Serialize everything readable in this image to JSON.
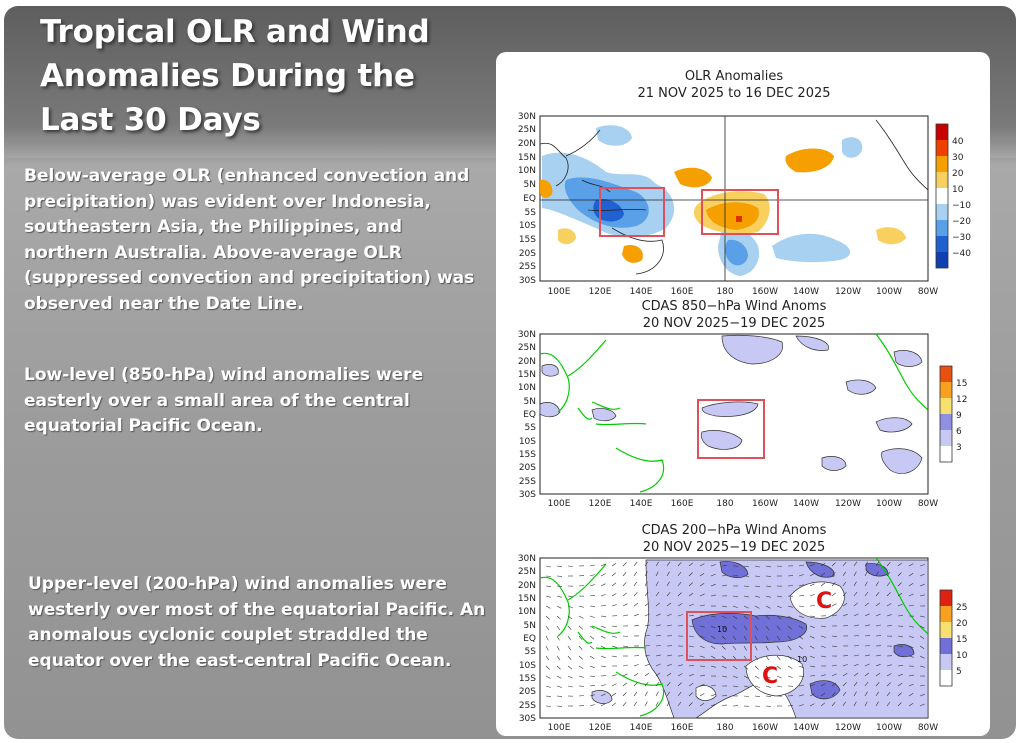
{
  "slide": {
    "title": "Tropical OLR and Wind Anomalies During the Last 30 Days",
    "paragraphs": [
      "Below-average OLR (enhanced convection and precipitation) was evident over Indonesia, southeastern Asia, the Philippines, and northern Australia.  Above-average OLR (suppressed convection and precipitation) was observed near the Date Line.",
      "Low-level (850-hPa) wind anomalies were easterly over a small area of the central equatorial Pacific Ocean.",
      "Upper-level (200-hPa) wind anomalies were westerly over most of the equatorial Pacific. An anomalous cyclonic couplet straddled the equator over the east-central Pacific Ocean."
    ]
  },
  "colors": {
    "background": "#9a9a9a",
    "panel": "#ffffff",
    "highlight_box": "#e0505a",
    "coastline": "#00cc00",
    "olr_negative": "#3f8ee0",
    "olr_positive": "#f0a826",
    "wind_shading": "#b8b8f0"
  },
  "figures": {
    "olr": {
      "title_line1": "OLR Anomalies",
      "title_line2": "21 NOV 2025 to 16 DEC 2025",
      "lat_labels": [
        "30N",
        "25N",
        "20N",
        "15N",
        "10N",
        "5N",
        "EQ",
        "5S",
        "10S",
        "15S",
        "20S",
        "25S",
        "30S"
      ],
      "lon_labels": [
        "100E",
        "120E",
        "140E",
        "160E",
        "180",
        "160W",
        "140W",
        "120W",
        "100W",
        "80W"
      ],
      "colorbar_labels": [
        "40",
        "30",
        "20",
        "10",
        "−10",
        "−20",
        "−30",
        "−40"
      ],
      "colorbar_colors": [
        "#c80000",
        "#f04000",
        "#f5a000",
        "#f8d060",
        "#ffffff",
        "#a8d0f0",
        "#5aa0e8",
        "#2060d0",
        "#1040b0"
      ]
    },
    "wind850": {
      "title_line1": "CDAS 850−hPa Wind Anoms",
      "title_line2": "20 NOV 2025−19 DEC 2025",
      "lat_labels": [
        "30N",
        "25N",
        "20N",
        "15N",
        "10N",
        "5N",
        "EQ",
        "5S",
        "10S",
        "15S",
        "20S",
        "25S",
        "30S"
      ],
      "lon_labels": [
        "100E",
        "120E",
        "140E",
        "160E",
        "180",
        "160W",
        "140W",
        "120W",
        "100W",
        "80W"
      ],
      "colorbar_labels": [
        "15",
        "12",
        "9",
        "6",
        "3"
      ],
      "colorbar_colors": [
        "#e85010",
        "#f8a020",
        "#f8e070",
        "#9090e0",
        "#c8c8f4",
        "#ffffff"
      ]
    },
    "wind200": {
      "title_line1": "CDAS 200−hPa Wind Anoms",
      "title_line2": "20 NOV 2025−19 DEC 2025",
      "lat_labels": [
        "30N",
        "25N",
        "20N",
        "15N",
        "10N",
        "5N",
        "EQ",
        "5S",
        "10S",
        "15S",
        "20S",
        "25S",
        "30S"
      ],
      "lon_labels": [
        "100E",
        "120E",
        "140E",
        "160E",
        "180",
        "160W",
        "140W",
        "120W",
        "100W",
        "80W"
      ],
      "colorbar_labels": [
        "25",
        "20",
        "15",
        "10",
        "5"
      ],
      "colorbar_colors": [
        "#e02010",
        "#f8a020",
        "#f8e070",
        "#7070d8",
        "#c8c8f4",
        "#ffffff"
      ],
      "annotations": [
        "C",
        "C"
      ],
      "contour_labels": [
        "10",
        "10"
      ]
    }
  }
}
